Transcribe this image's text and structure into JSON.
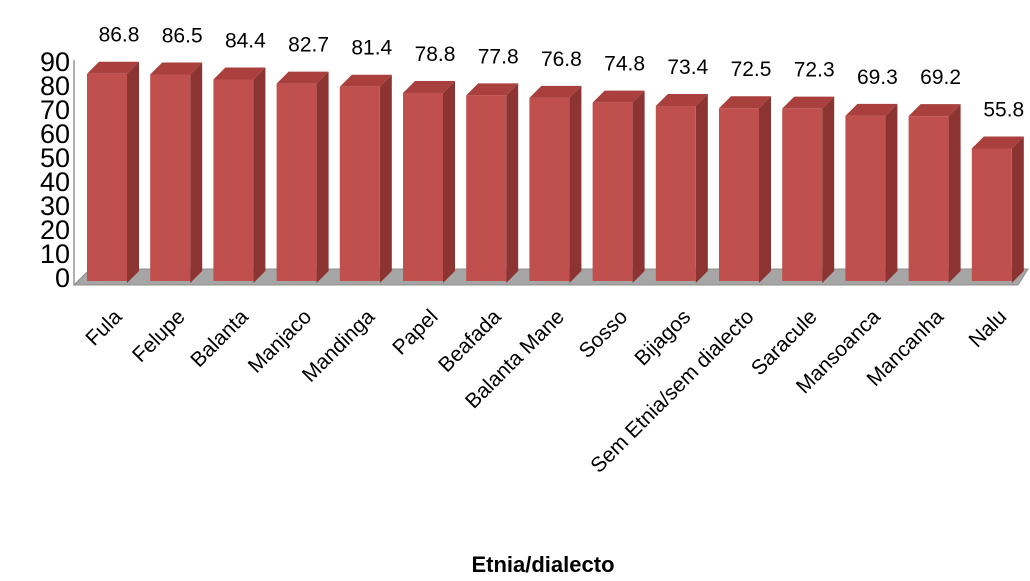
{
  "chart_data": {
    "type": "bar",
    "style": "3d-column",
    "title": "",
    "xlabel": "Etnia/dialecto",
    "ylabel": "",
    "ylim": [
      0,
      90
    ],
    "yticks": [
      "0",
      "10",
      "20",
      "30",
      "40",
      "50",
      "60",
      "70",
      "80",
      "90"
    ],
    "categories": [
      "Fula",
      "Felupe",
      "Balanta",
      "Manjaco",
      "Mandinga",
      "Papel",
      "Beafada",
      "Balanta Mane",
      "Sosso",
      "Bijagos",
      "Sem Etnia/sem dialecto",
      "Saracule",
      "Mansoanca",
      "Mancanha",
      "Nalu"
    ],
    "values": [
      86.8,
      86.5,
      84.4,
      82.7,
      81.4,
      78.8,
      77.8,
      76.8,
      74.8,
      73.4,
      72.5,
      72.3,
      69.3,
      69.2,
      55.8
    ],
    "data_labels": [
      "86.8",
      "86.5",
      "84.4",
      "82.7",
      "81.4",
      "78.8",
      "77.8",
      "76.8",
      "74.8",
      "73.4",
      "72.5",
      "72.3",
      "69.3",
      "69.2",
      "55.8"
    ],
    "grid": false,
    "legend": "none",
    "colors": {
      "bar_front": "#c0504d",
      "bar_side": "#8b3431",
      "bar_top": "#a9403d",
      "floor": "#a6a6a6",
      "floor_edge": "#8c8c8c",
      "axis": "#868686"
    }
  }
}
